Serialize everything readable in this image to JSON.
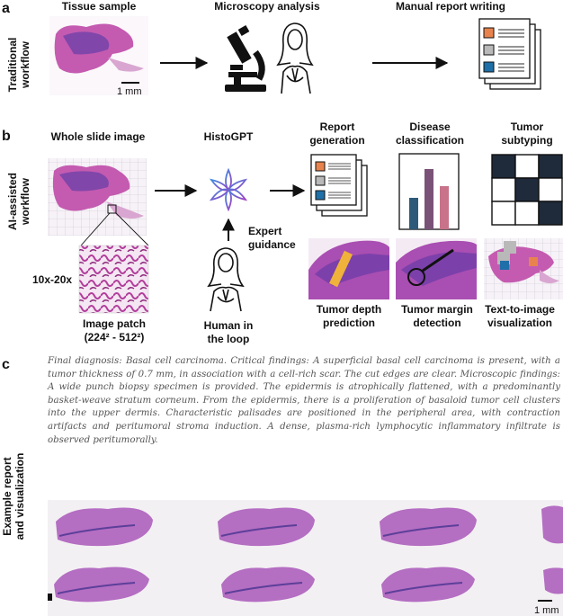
{
  "panels": {
    "a": {
      "letter": "a",
      "row_label": [
        "Traditional",
        "workflow"
      ],
      "steps": [
        "Tissue sample",
        "Microscopy analysis",
        "Manual report writing"
      ],
      "scale_bar": "1 mm"
    },
    "b": {
      "letter": "b",
      "row_label": [
        "AI-assisted",
        "workflow"
      ],
      "whole_slide_image": "Whole slide image",
      "model": "HistoGPT",
      "magnification": "10x-20x",
      "image_patch": "Image patch",
      "patch_size": "(224² - 512²)",
      "expert_guidance": [
        "Expert",
        "guidance"
      ],
      "human_in_loop": [
        "Human in",
        "the loop"
      ],
      "tasks": [
        {
          "name": "report-generation",
          "label": [
            "Report",
            "generation"
          ]
        },
        {
          "name": "disease-classification",
          "label": [
            "Disease",
            "classification"
          ]
        },
        {
          "name": "tumor-subtyping",
          "label": [
            "Tumor",
            "subtyping"
          ]
        }
      ],
      "outputs": [
        {
          "name": "tumor-depth",
          "label": [
            "Tumor depth",
            "prediction"
          ]
        },
        {
          "name": "tumor-margin",
          "label": [
            "Tumor margin",
            "detection"
          ]
        },
        {
          "name": "text-to-image",
          "label": [
            "Text-to-image",
            "visualization"
          ]
        }
      ],
      "colors": {
        "orange": "#e8834d",
        "gray": "#b9b9b9",
        "blue": "#1f6fa8",
        "bar1": "#2e5a7a",
        "bar2": "#7a5278",
        "bar3": "#c8738a",
        "tissue": "#b04fa6"
      }
    },
    "c": {
      "letter": "c",
      "row_label": [
        "Example report",
        "and visualization"
      ],
      "report": "Final diagnosis: Basal cell carcinoma. Critical findings: A superficial basal cell carcinoma is present, with a tumor thickness of 0.7 mm, in association with a cell-rich scar. The cut edges are clear. Microscopic findings: A wide punch biopsy specimen is provided. The epidermis is atrophically flattened, with a predominantly basket-weave stratum corneum. From the epidermis, there is a proliferation of basaloid tumor cell clusters into the upper dermis. Characteristic palisades are positioned in the peripheral area, with contraction artifacts and peritumoral stroma induction. A dense, plasma-rich lymphocytic inflammatory infiltrate is observed peritumorally.",
      "scale_bar": "1 mm"
    }
  }
}
